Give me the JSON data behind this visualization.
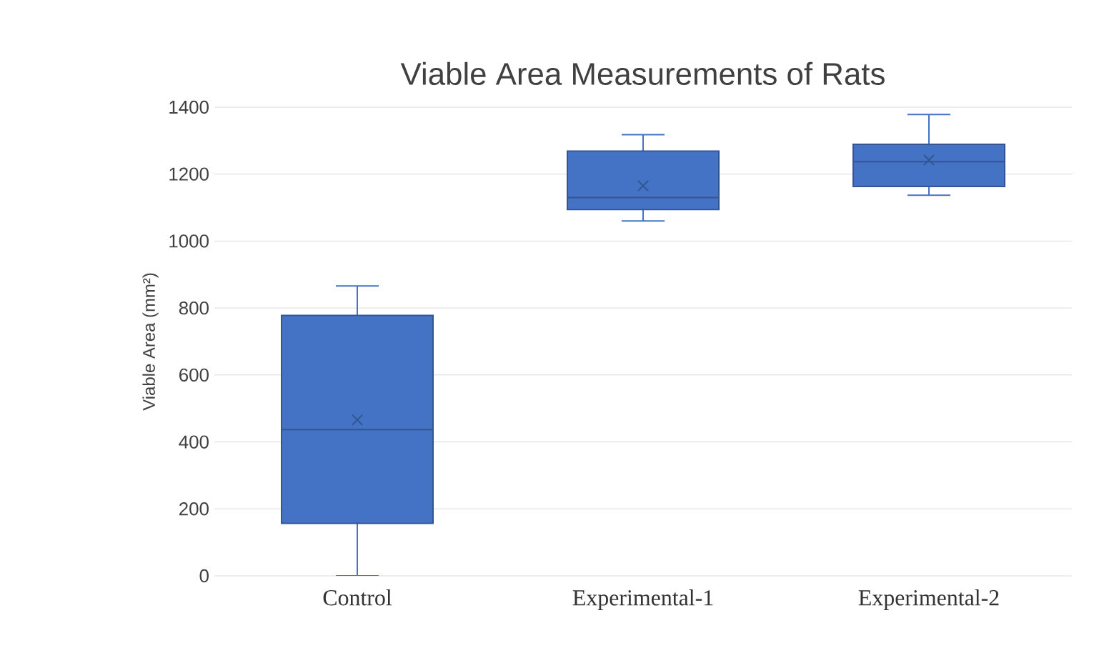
{
  "chart_data": {
    "type": "box",
    "title": "Viable Area Measurements of Rats",
    "ylabel": "Viable Area  (mm²)",
    "categories": [
      "Control",
      "Experimental-1",
      "Experimental-2"
    ],
    "boxes": [
      {
        "low": 0,
        "q1": 157,
        "median": 437,
        "q3": 778,
        "high": 866,
        "mean": 466
      },
      {
        "low": 1060,
        "q1": 1094,
        "median": 1130,
        "q3": 1269,
        "high": 1318,
        "mean": 1165
      },
      {
        "low": 1137,
        "q1": 1163,
        "median": 1237,
        "q3": 1289,
        "high": 1378,
        "mean": 1242
      }
    ],
    "color": "#4472c4",
    "ylim": [
      0,
      1400
    ],
    "yticks": [
      0,
      200,
      400,
      600,
      800,
      1000,
      1200,
      1400
    ],
    "grid": "y"
  }
}
